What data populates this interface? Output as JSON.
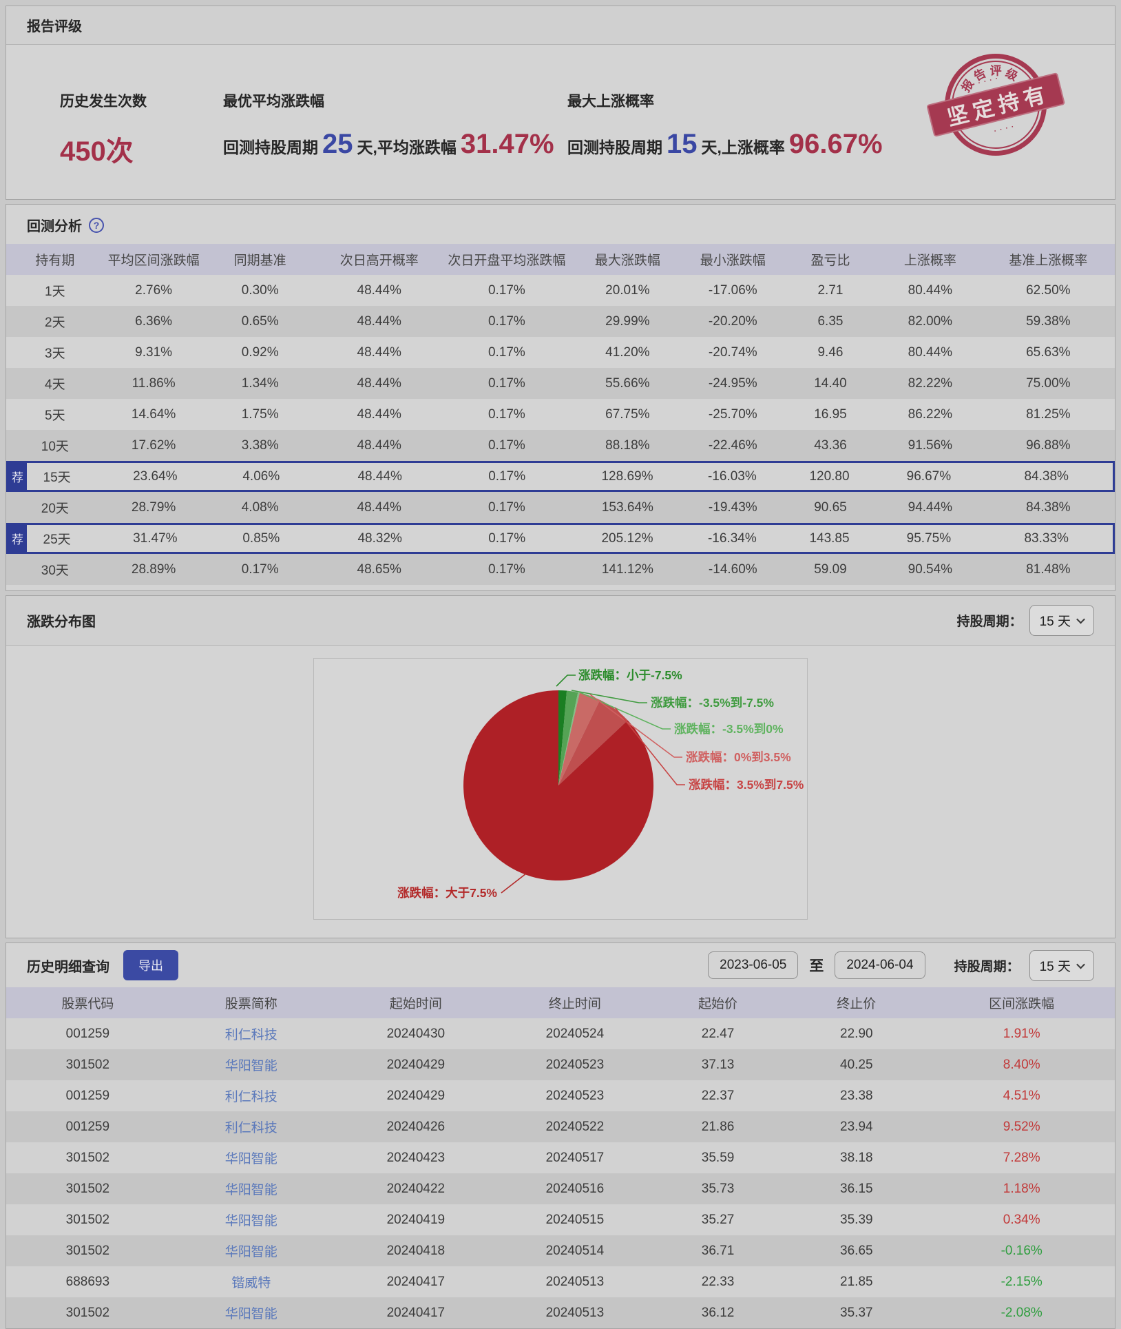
{
  "rating": {
    "section_title": "报告评级",
    "metric1": {
      "label": "历史发生次数",
      "value": "450次"
    },
    "metric2": {
      "label": "最优平均涨跌幅",
      "prefix": "回测持股周期",
      "days": "25",
      "middle": "天,平均涨跌幅",
      "percent": "31.47%"
    },
    "metric3": {
      "label": "最大上涨概率",
      "prefix": "回测持股周期",
      "days": "15",
      "middle": "天,上涨概率",
      "percent": "96.67%"
    },
    "stamp": {
      "arc_text": "报告评级",
      "banner": "坚定持有",
      "color": "#a33049"
    }
  },
  "backtest": {
    "section_title": "回测分析",
    "help_icon": "?",
    "badge": "荐",
    "columns": [
      "持有期",
      "平均区间涨跌幅",
      "同期基准",
      "次日高开概率",
      "次日开盘平均涨跌幅",
      "最大涨跌幅",
      "最小涨跌幅",
      "盈亏比",
      "上涨概率",
      "基准上涨概率"
    ],
    "rows": [
      {
        "recommended": false,
        "cells": [
          "1天",
          "2.76%",
          "0.30%",
          "48.44%",
          "0.17%",
          "20.01%",
          "-17.06%",
          "2.71",
          "80.44%",
          "62.50%"
        ]
      },
      {
        "recommended": false,
        "cells": [
          "2天",
          "6.36%",
          "0.65%",
          "48.44%",
          "0.17%",
          "29.99%",
          "-20.20%",
          "6.35",
          "82.00%",
          "59.38%"
        ]
      },
      {
        "recommended": false,
        "cells": [
          "3天",
          "9.31%",
          "0.92%",
          "48.44%",
          "0.17%",
          "41.20%",
          "-20.74%",
          "9.46",
          "80.44%",
          "65.63%"
        ]
      },
      {
        "recommended": false,
        "cells": [
          "4天",
          "11.86%",
          "1.34%",
          "48.44%",
          "0.17%",
          "55.66%",
          "-24.95%",
          "14.40",
          "82.22%",
          "75.00%"
        ]
      },
      {
        "recommended": false,
        "cells": [
          "5天",
          "14.64%",
          "1.75%",
          "48.44%",
          "0.17%",
          "67.75%",
          "-25.70%",
          "16.95",
          "86.22%",
          "81.25%"
        ]
      },
      {
        "recommended": false,
        "cells": [
          "10天",
          "17.62%",
          "3.38%",
          "48.44%",
          "0.17%",
          "88.18%",
          "-22.46%",
          "43.36",
          "91.56%",
          "96.88%"
        ]
      },
      {
        "recommended": true,
        "cells": [
          "15天",
          "23.64%",
          "4.06%",
          "48.44%",
          "0.17%",
          "128.69%",
          "-16.03%",
          "120.80",
          "96.67%",
          "84.38%"
        ]
      },
      {
        "recommended": false,
        "cells": [
          "20天",
          "28.79%",
          "4.08%",
          "48.44%",
          "0.17%",
          "153.64%",
          "-19.43%",
          "90.65",
          "94.44%",
          "84.38%"
        ]
      },
      {
        "recommended": true,
        "cells": [
          "25天",
          "31.47%",
          "0.85%",
          "48.32%",
          "0.17%",
          "205.12%",
          "-16.34%",
          "143.85",
          "95.75%",
          "83.33%"
        ]
      },
      {
        "recommended": false,
        "cells": [
          "30天",
          "28.89%",
          "0.17%",
          "48.65%",
          "0.17%",
          "141.12%",
          "-14.60%",
          "59.09",
          "90.54%",
          "81.48%"
        ]
      }
    ]
  },
  "distribution": {
    "section_title": "涨跌分布图",
    "period_label": "持股周期：",
    "period_value": "15 天"
  },
  "chart_data": {
    "type": "pie",
    "title": "涨跌分布图",
    "holding_period": "15 天",
    "legend_position": "right-labels-with-leaders",
    "start_angle_deg": 0,
    "slices": [
      {
        "label": "涨跌幅：小于-7.5%",
        "value": 1.4,
        "color": "#1a7e22",
        "label_color": "#2c8c2c"
      },
      {
        "label": "涨跌幅：-3.5%到-7.5%",
        "value": 1.9,
        "color": "#55a355",
        "label_color": "#3f9b3f"
      },
      {
        "label": "涨跌幅：-3.5%到0%",
        "value": 0.3,
        "color": "#86bd86",
        "label_color": "#5fb35f"
      },
      {
        "label": "涨跌幅：0%到3.5%",
        "value": 3.6,
        "color": "#c96a66",
        "label_color": "#d06060"
      },
      {
        "label": "涨跌幅：3.5%到7.5%",
        "value": 5.8,
        "color": "#bf4f4f",
        "label_color": "#c74444"
      },
      {
        "label": "涨跌幅：大于7.5%",
        "value": 87.0,
        "color": "#ae2026",
        "label_color": "#b32a2a"
      }
    ]
  },
  "history": {
    "section_title": "历史明细查询",
    "export_label": "导出",
    "date_from": "2023-06-05",
    "to_label": "至",
    "date_to": "2024-06-04",
    "period_label": "持股周期：",
    "period_value": "15 天",
    "columns": [
      "股票代码",
      "股票简称",
      "起始时间",
      "终止时间",
      "起始价",
      "终止价",
      "区间涨跌幅"
    ],
    "rows": [
      {
        "code": "001259",
        "name": "利仁科技",
        "start": "20240430",
        "end": "20240524",
        "start_price": "22.47",
        "end_price": "22.90",
        "change": "1.91%"
      },
      {
        "code": "301502",
        "name": "华阳智能",
        "start": "20240429",
        "end": "20240523",
        "start_price": "37.13",
        "end_price": "40.25",
        "change": "8.40%"
      },
      {
        "code": "001259",
        "name": "利仁科技",
        "start": "20240429",
        "end": "20240523",
        "start_price": "22.37",
        "end_price": "23.38",
        "change": "4.51%"
      },
      {
        "code": "001259",
        "name": "利仁科技",
        "start": "20240426",
        "end": "20240522",
        "start_price": "21.86",
        "end_price": "23.94",
        "change": "9.52%"
      },
      {
        "code": "301502",
        "name": "华阳智能",
        "start": "20240423",
        "end": "20240517",
        "start_price": "35.59",
        "end_price": "38.18",
        "change": "7.28%"
      },
      {
        "code": "301502",
        "name": "华阳智能",
        "start": "20240422",
        "end": "20240516",
        "start_price": "35.73",
        "end_price": "36.15",
        "change": "1.18%"
      },
      {
        "code": "301502",
        "name": "华阳智能",
        "start": "20240419",
        "end": "20240515",
        "start_price": "35.27",
        "end_price": "35.39",
        "change": "0.34%"
      },
      {
        "code": "301502",
        "name": "华阳智能",
        "start": "20240418",
        "end": "20240514",
        "start_price": "36.71",
        "end_price": "36.65",
        "change": "-0.16%"
      },
      {
        "code": "688693",
        "name": "锴威特",
        "start": "20240417",
        "end": "20240513",
        "start_price": "22.33",
        "end_price": "21.85",
        "change": "-2.15%"
      },
      {
        "code": "301502",
        "name": "华阳智能",
        "start": "20240417",
        "end": "20240513",
        "start_price": "36.12",
        "end_price": "35.37",
        "change": "-2.08%"
      }
    ]
  }
}
